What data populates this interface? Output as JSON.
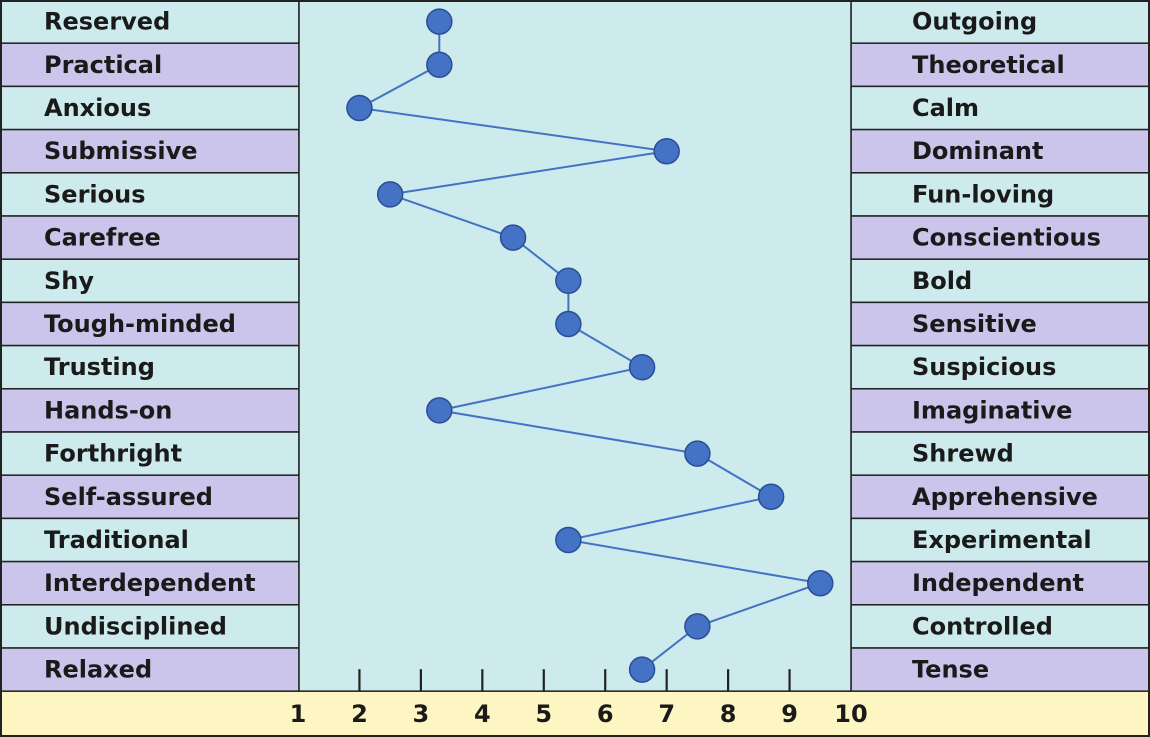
{
  "chart_data": {
    "type": "line",
    "title": "",
    "xlabel": "",
    "ylabel": "",
    "xlim": [
      1,
      10
    ],
    "x_ticks": [
      "1",
      "2",
      "3",
      "4",
      "5",
      "6",
      "7",
      "8",
      "9",
      "10"
    ],
    "grid": false,
    "legend": "none",
    "colors": {
      "row_even": "#cdebec",
      "row_odd": "#cbc5ec",
      "plot_bg": "#cdebec",
      "axis_bar": "#fdf6c2",
      "line": "#4472c4",
      "point_fill": "#4472c4",
      "point_stroke": "#2a4e96",
      "border": "#222222"
    },
    "left_labels": [
      "Reserved",
      "Practical",
      "Anxious",
      "Submissive",
      "Serious",
      "Carefree",
      "Shy",
      "Tough-minded",
      "Trusting",
      "Hands-on",
      "Forthright",
      "Self-assured",
      "Traditional",
      "Interdependent",
      "Undisciplined",
      "Relaxed"
    ],
    "right_labels": [
      "Outgoing",
      "Theoretical",
      "Calm",
      "Dominant",
      "Fun-loving",
      "Conscientious",
      "Bold",
      "Sensitive",
      "Suspicious",
      "Imaginative",
      "Shrewd",
      "Apprehensive",
      "Experimental",
      "Independent",
      "Controlled",
      "Tense"
    ],
    "series": [
      {
        "values": [
          3.3,
          3.3,
          2.0,
          7.0,
          2.5,
          4.5,
          5.4,
          5.4,
          6.6,
          3.3,
          7.5,
          8.7,
          5.4,
          9.5,
          7.5,
          6.6
        ]
      }
    ]
  }
}
